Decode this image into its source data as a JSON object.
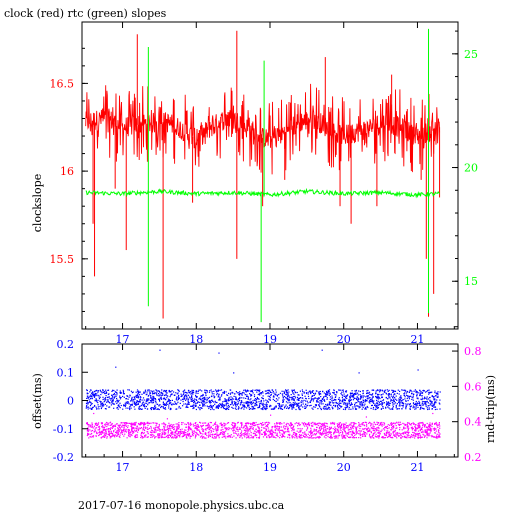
{
  "page": {
    "title": "clock (red) rtc (green) slopes",
    "footer": "2017-07-16  monopole.physics.ubc.ca"
  },
  "colors": {
    "clock": "#ff0000",
    "rtc": "#00ff00",
    "offset": "#0000ff",
    "rndtrip": "#ff00ff",
    "upper_right_axis": "#00ff00",
    "lower_left_axis": "#0000ff",
    "lower_right_axis": "#ff00ff",
    "upper_left_axis": "#ff0000"
  },
  "chart_data": [
    {
      "type": "line",
      "title": "clock (red) rtc (green) slopes",
      "ylabel": "clockslope",
      "xlim": [
        16.45,
        21.55
      ],
      "xticks": [
        "17",
        "18",
        "19",
        "20",
        "21"
      ],
      "ylim": [
        15.1,
        16.85
      ],
      "yticks": [
        "15.5",
        "16",
        "16.5"
      ],
      "y2lim": [
        12.9,
        26.4
      ],
      "y2ticks": [
        "15",
        "20",
        "25"
      ],
      "grid": false,
      "series": [
        {
          "axis": "left",
          "baseline_points": [
            [
              16.5,
              16.28
            ],
            [
              16.8,
              16.3
            ],
            [
              17.0,
              16.25
            ],
            [
              17.3,
              16.27
            ],
            [
              17.6,
              16.28
            ],
            [
              17.8,
              16.24
            ],
            [
              18.0,
              16.18
            ],
            [
              18.2,
              16.25
            ],
            [
              18.4,
              16.3
            ],
            [
              18.6,
              16.28
            ],
            [
              18.8,
              16.2
            ],
            [
              19.0,
              16.18
            ],
            [
              19.2,
              16.22
            ],
            [
              19.4,
              16.28
            ],
            [
              19.6,
              16.3
            ],
            [
              19.8,
              16.24
            ],
            [
              20.0,
              16.2
            ],
            [
              20.3,
              16.24
            ],
            [
              20.6,
              16.28
            ],
            [
              20.8,
              16.24
            ],
            [
              21.0,
              16.2
            ],
            [
              21.3,
              16.25
            ]
          ],
          "spikes": [
            [
              16.6,
              15.7
            ],
            [
              16.62,
              15.4
            ],
            [
              16.9,
              15.9
            ],
            [
              17.05,
              15.55
            ],
            [
              17.2,
              16.78
            ],
            [
              17.55,
              15.16
            ],
            [
              17.95,
              15.82
            ],
            [
              18.55,
              15.5
            ],
            [
              18.55,
              16.8
            ],
            [
              18.9,
              15.8
            ],
            [
              19.2,
              15.95
            ],
            [
              19.95,
              15.8
            ],
            [
              20.1,
              15.7
            ],
            [
              20.45,
              15.8
            ],
            [
              21.05,
              15.95
            ],
            [
              21.12,
              15.5
            ],
            [
              21.15,
              15.17
            ],
            [
              21.22,
              15.3
            ],
            [
              20.65,
              16.55
            ],
            [
              19.75,
              16.65
            ],
            [
              21.3,
              15.85
            ]
          ]
        },
        {
          "axis": "right",
          "baseline_points": [
            [
              16.5,
              18.9
            ],
            [
              17.0,
              18.85
            ],
            [
              17.5,
              18.95
            ],
            [
              18.0,
              18.85
            ],
            [
              18.5,
              18.9
            ],
            [
              19.0,
              18.8
            ],
            [
              19.5,
              18.95
            ],
            [
              20.0,
              18.85
            ],
            [
              20.5,
              18.9
            ],
            [
              21.0,
              18.8
            ],
            [
              21.3,
              18.85
            ]
          ],
          "spikes": [
            [
              17.35,
              25.3
            ],
            [
              17.35,
              13.9
            ],
            [
              18.88,
              13.2
            ],
            [
              18.92,
              24.7
            ],
            [
              21.15,
              26.1
            ],
            [
              21.15,
              13.6
            ]
          ]
        }
      ]
    },
    {
      "type": "scatter",
      "ylabel": "offset(ms)",
      "y2label": "rnd-trip(ms)",
      "xlim": [
        16.45,
        21.55
      ],
      "xticks": [
        "17",
        "18",
        "19",
        "20",
        "21"
      ],
      "ylim": [
        -0.2,
        0.2
      ],
      "yticks": [
        "0.2",
        "0.1",
        "0",
        "-0.1",
        "-0.2"
      ],
      "y2lim": [
        0.2,
        0.84
      ],
      "y2ticks": [
        "0.8",
        "0.6",
        "0.4",
        "0.2"
      ],
      "grid": false,
      "series": [
        {
          "axis": "left",
          "band": [
            -0.03,
            0.04
          ],
          "outliers": [
            [
              17.5,
              0.18
            ],
            [
              18.3,
              0.17
            ],
            [
              19.7,
              0.18
            ],
            [
              16.9,
              0.12
            ],
            [
              18.5,
              0.1
            ],
            [
              20.2,
              0.1
            ],
            [
              21.0,
              0.11
            ]
          ]
        },
        {
          "axis": "right",
          "band": [
            0.31,
            0.4
          ],
          "outliers": [
            [
              16.6,
              0.45
            ],
            [
              17.6,
              0.42
            ],
            [
              19.0,
              0.44
            ],
            [
              20.3,
              0.43
            ],
            [
              21.2,
              0.45
            ]
          ]
        }
      ]
    }
  ]
}
